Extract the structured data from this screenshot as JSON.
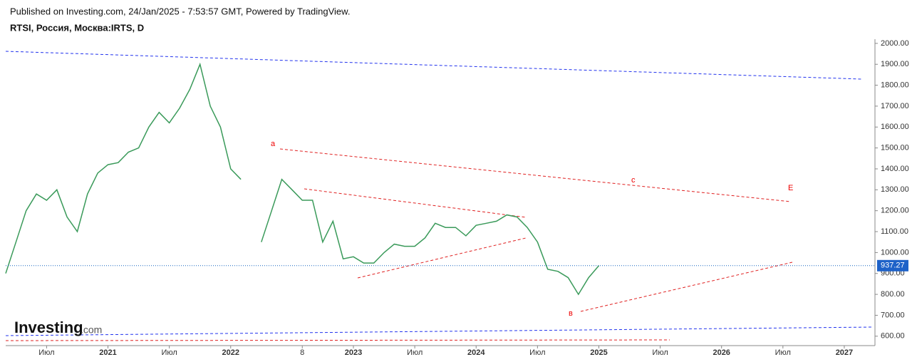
{
  "header": {
    "published": "Published on Investing.com, 24/Jan/2025 - 7:53:57 GMT, Powered by TradingView.",
    "symbol": "RTSI, Россия, Москва:IRTS, D"
  },
  "logo": {
    "brand": "Investing",
    "suffix": ".com"
  },
  "chart_data": {
    "type": "line",
    "color": "#3a9a5a",
    "x": [
      "2020-03",
      "2020-04",
      "2020-05",
      "2020-06",
      "2020-07",
      "2020-08",
      "2020-09",
      "2020-10",
      "2020-11",
      "2020-12",
      "2021-01",
      "2021-02",
      "2021-03",
      "2021-04",
      "2021-05",
      "2021-06",
      "2021-07",
      "2021-08",
      "2021-09",
      "2021-10",
      "2021-11",
      "2021-12",
      "2022-01",
      "2022-02",
      "2022-03",
      "2022-04",
      "2022-05",
      "2022-06",
      "2022-07",
      "2022-08",
      "2022-09",
      "2022-10",
      "2022-11",
      "2022-12",
      "2023-01",
      "2023-02",
      "2023-03",
      "2023-04",
      "2023-05",
      "2023-06",
      "2023-07",
      "2023-08",
      "2023-09",
      "2023-10",
      "2023-11",
      "2023-12",
      "2024-01",
      "2024-02",
      "2024-03",
      "2024-04",
      "2024-05",
      "2024-06",
      "2024-07",
      "2024-08",
      "2024-09",
      "2024-10",
      "2024-11",
      "2024-12",
      "2025-01"
    ],
    "values": [
      900,
      1050,
      1200,
      1280,
      1250,
      1300,
      1170,
      1100,
      1280,
      1380,
      1420,
      1430,
      1480,
      1500,
      1600,
      1670,
      1620,
      1690,
      1780,
      1900,
      1700,
      1600,
      1400,
      1350,
      null,
      1050,
      1200,
      1350,
      1300,
      1250,
      1250,
      1050,
      1150,
      970,
      980,
      950,
      950,
      1000,
      1040,
      1030,
      1030,
      1070,
      1140,
      1120,
      1120,
      1080,
      1130,
      1140,
      1150,
      1180,
      1170,
      1120,
      1050,
      920,
      910,
      880,
      800,
      880,
      937.27
    ],
    "last_value": {
      "value": 937.27,
      "label": "937.27"
    },
    "xlim": [
      "2020-03",
      "2027-04"
    ],
    "xticks": [
      {
        "value": "2020-07",
        "label": "Июл"
      },
      {
        "value": "2021-01",
        "label": "2021"
      },
      {
        "value": "2021-07",
        "label": "Июл"
      },
      {
        "value": "2022-01",
        "label": "2022"
      },
      {
        "value": "2022-08",
        "label": "8"
      },
      {
        "value": "2023-01",
        "label": "2023"
      },
      {
        "value": "2023-07",
        "label": "Июл"
      },
      {
        "value": "2024-01",
        "label": "2024"
      },
      {
        "value": "2024-07",
        "label": "Июл"
      },
      {
        "value": "2025-01",
        "label": "2025"
      },
      {
        "value": "2025-07",
        "label": "Июл"
      },
      {
        "value": "2026-01",
        "label": "2026"
      },
      {
        "value": "2026-07",
        "label": "Июл"
      },
      {
        "value": "2027-01",
        "label": "2027"
      }
    ],
    "ylim": [
      555,
      2020
    ],
    "yticks": [
      {
        "value": 600,
        "label": "600.00"
      },
      {
        "value": 700,
        "label": "700.00"
      },
      {
        "value": 800,
        "label": "800.00"
      },
      {
        "value": 900,
        "label": "900.00"
      },
      {
        "value": 1000,
        "label": "1000.00"
      },
      {
        "value": 1100,
        "label": "1100.00"
      },
      {
        "value": 1200,
        "label": "1200.00"
      },
      {
        "value": 1300,
        "label": "1300.00"
      },
      {
        "value": 1400,
        "label": "1400.00"
      },
      {
        "value": 1500,
        "label": "1500.00"
      },
      {
        "value": 1600,
        "label": "1600.00"
      },
      {
        "value": 1700,
        "label": "1700.00"
      },
      {
        "value": 1800,
        "label": "1800.00"
      },
      {
        "value": 1900,
        "label": "1900.00"
      },
      {
        "value": 2000,
        "label": "2000.00"
      }
    ],
    "annotations": [
      "a",
      "c",
      "E",
      "в"
    ]
  }
}
